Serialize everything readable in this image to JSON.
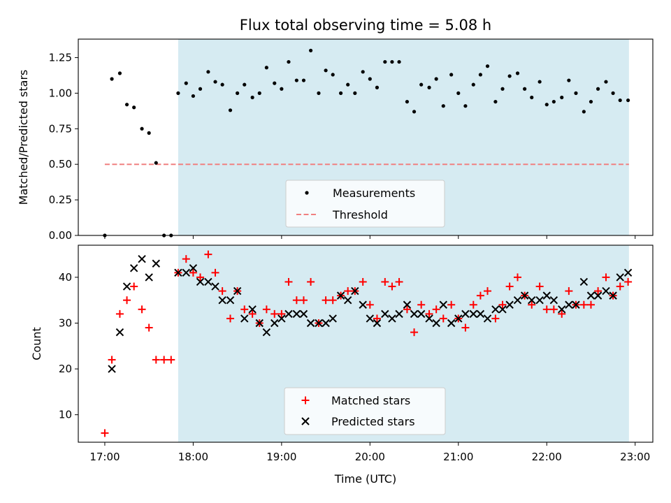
{
  "figure": {
    "title": "Flux total observing time = 5.08 h"
  },
  "chart_data": [
    {
      "type": "scatter",
      "panel": "top",
      "title": "Flux total observing time = 5.08 h",
      "ylabel": "Matched/Predicted stars",
      "xlabel": "",
      "xlim": [
        16.7,
        23.2
      ],
      "ylim": [
        0,
        1.38
      ],
      "yticks": [
        0.0,
        0.25,
        0.5,
        0.75,
        1.0,
        1.25
      ],
      "ytick_labels": [
        "0.00",
        "0.25",
        "0.50",
        "0.75",
        "1.00",
        "1.25"
      ],
      "shaded_interval": [
        17.83,
        22.93
      ],
      "legend": {
        "placement": "lower-center",
        "entries": [
          "Measurements",
          "Threshold"
        ]
      },
      "threshold": {
        "name": "Threshold",
        "value": 0.5,
        "x_range": [
          17.0,
          22.93
        ],
        "color": "#f08080"
      },
      "series": [
        {
          "name": "Measurements",
          "marker": "dot",
          "color": "#000000",
          "x": [
            17.0,
            17.08,
            17.17,
            17.25,
            17.33,
            17.42,
            17.5,
            17.58,
            17.67,
            17.75,
            17.83,
            17.92,
            18.0,
            18.08,
            18.17,
            18.25,
            18.33,
            18.42,
            18.5,
            18.58,
            18.67,
            18.75,
            18.83,
            18.92,
            19.0,
            19.08,
            19.17,
            19.25,
            19.33,
            19.42,
            19.5,
            19.58,
            19.67,
            19.75,
            19.83,
            19.92,
            20.0,
            20.08,
            20.17,
            20.25,
            20.33,
            20.42,
            20.5,
            20.58,
            20.67,
            20.75,
            20.83,
            20.92,
            21.0,
            21.08,
            21.17,
            21.25,
            21.33,
            21.42,
            21.5,
            21.58,
            21.67,
            21.75,
            21.83,
            21.92,
            22.0,
            22.08,
            22.17,
            22.25,
            22.33,
            22.42,
            22.5,
            22.58,
            22.67,
            22.75,
            22.83,
            22.92
          ],
          "y": [
            0.0,
            1.1,
            1.14,
            0.92,
            0.9,
            0.75,
            0.72,
            0.51,
            0.0,
            0.0,
            1.0,
            1.07,
            0.98,
            1.03,
            1.15,
            1.08,
            1.06,
            0.88,
            1.0,
            1.06,
            0.97,
            1.0,
            1.18,
            1.07,
            1.03,
            1.22,
            1.09,
            1.09,
            1.3,
            1.0,
            1.16,
            1.13,
            1.0,
            1.06,
            1.0,
            1.15,
            1.1,
            1.04,
            1.22,
            1.22,
            1.22,
            0.94,
            0.87,
            1.06,
            1.04,
            1.1,
            0.91,
            1.13,
            1.0,
            0.91,
            1.06,
            1.13,
            1.19,
            0.94,
            1.03,
            1.12,
            1.14,
            1.03,
            0.97,
            1.08,
            0.92,
            0.94,
            0.97,
            1.09,
            1.0,
            0.87,
            0.94,
            1.03,
            1.08,
            1.0,
            0.95,
            0.95
          ]
        }
      ]
    },
    {
      "type": "scatter",
      "panel": "bottom",
      "ylabel": "Count",
      "xlabel": "Time (UTC)",
      "xlim": [
        16.7,
        23.2
      ],
      "ylim": [
        4,
        47
      ],
      "yticks": [
        10,
        20,
        30,
        40
      ],
      "ytick_labels": [
        "10",
        "20",
        "30",
        "40"
      ],
      "xticks": [
        17,
        18,
        19,
        20,
        21,
        22,
        23
      ],
      "xtick_labels": [
        "17:00",
        "18:00",
        "19:00",
        "20:00",
        "21:00",
        "22:00",
        "23:00"
      ],
      "shaded_interval": [
        17.83,
        22.93
      ],
      "legend": {
        "placement": "lower-center",
        "entries": [
          "Matched stars",
          "Predicted stars"
        ]
      },
      "series": [
        {
          "name": "Matched stars",
          "marker": "plus",
          "color": "#ff0000",
          "x": [
            17.0,
            17.08,
            17.17,
            17.25,
            17.33,
            17.42,
            17.5,
            17.58,
            17.67,
            17.75,
            17.83,
            17.92,
            18.0,
            18.08,
            18.17,
            18.25,
            18.33,
            18.42,
            18.5,
            18.58,
            18.67,
            18.75,
            18.83,
            18.92,
            19.0,
            19.08,
            19.17,
            19.25,
            19.33,
            19.42,
            19.5,
            19.58,
            19.67,
            19.75,
            19.83,
            19.92,
            20.0,
            20.08,
            20.17,
            20.25,
            20.33,
            20.42,
            20.5,
            20.58,
            20.67,
            20.75,
            20.83,
            20.92,
            21.0,
            21.08,
            21.17,
            21.25,
            21.33,
            21.42,
            21.5,
            21.58,
            21.67,
            21.75,
            21.83,
            21.92,
            22.0,
            22.08,
            22.17,
            22.25,
            22.33,
            22.42,
            22.5,
            22.58,
            22.67,
            22.75,
            22.83,
            22.92
          ],
          "y": [
            6,
            22,
            32,
            35,
            38,
            33,
            29,
            22,
            22,
            22,
            41,
            44,
            41,
            40,
            45,
            41,
            37,
            31,
            37,
            33,
            32,
            30,
            33,
            32,
            32,
            39,
            35,
            35,
            39,
            30,
            35,
            35,
            36,
            37,
            37,
            39,
            34,
            31,
            39,
            38,
            39,
            33,
            28,
            34,
            32,
            33,
            31,
            34,
            31,
            29,
            34,
            36,
            37,
            31,
            34,
            38,
            40,
            36,
            34,
            38,
            33,
            33,
            32,
            37,
            34,
            34,
            34,
            37,
            40,
            36,
            38,
            39
          ]
        },
        {
          "name": "Predicted stars",
          "marker": "x",
          "color": "#000000",
          "x": [
            17.08,
            17.17,
            17.25,
            17.33,
            17.42,
            17.5,
            17.58,
            17.83,
            17.92,
            18.0,
            18.08,
            18.17,
            18.25,
            18.33,
            18.42,
            18.5,
            18.58,
            18.67,
            18.75,
            18.83,
            18.92,
            19.0,
            19.08,
            19.17,
            19.25,
            19.33,
            19.42,
            19.5,
            19.58,
            19.67,
            19.75,
            19.83,
            19.92,
            20.0,
            20.08,
            20.17,
            20.25,
            20.33,
            20.42,
            20.5,
            20.58,
            20.67,
            20.75,
            20.83,
            20.92,
            21.0,
            21.08,
            21.17,
            21.25,
            21.33,
            21.42,
            21.5,
            21.58,
            21.67,
            21.75,
            21.83,
            21.92,
            22.0,
            22.08,
            22.17,
            22.25,
            22.33,
            22.42,
            22.5,
            22.58,
            22.67,
            22.75,
            22.83,
            22.92
          ],
          "y": [
            20,
            28,
            38,
            42,
            44,
            40,
            43,
            41,
            41,
            42,
            39,
            39,
            38,
            35,
            35,
            37,
            31,
            33,
            30,
            28,
            30,
            31,
            32,
            32,
            32,
            30,
            30,
            30,
            31,
            36,
            35,
            37,
            34,
            31,
            30,
            32,
            31,
            32,
            34,
            32,
            32,
            31,
            30,
            34,
            30,
            31,
            32,
            32,
            32,
            31,
            33,
            33,
            34,
            35,
            36,
            35,
            35,
            36,
            35,
            33,
            34,
            34,
            39,
            36,
            36,
            37,
            36,
            40,
            41
          ]
        }
      ]
    }
  ]
}
